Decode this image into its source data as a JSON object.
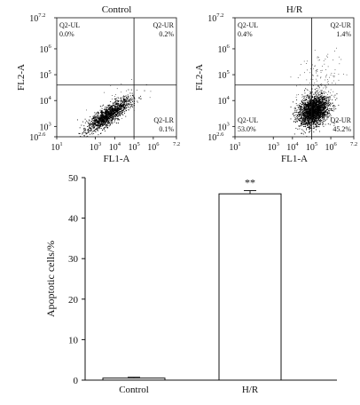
{
  "chart_data": [
    {
      "type": "scatter",
      "panel": "flow-control",
      "title": "Control",
      "xlabel": "FL1-A",
      "ylabel": "FL2-A",
      "xlim": [
        1,
        7.2
      ],
      "ylim": [
        2.6,
        7.2
      ],
      "scale": "log10",
      "x_ticks": [
        {
          "base": "10",
          "exp": "1",
          "value": 1
        },
        {
          "base": "10",
          "exp": "3",
          "value": 3
        },
        {
          "base": "10",
          "exp": "4",
          "value": 4
        },
        {
          "base": "10",
          "exp": "5",
          "value": 5
        },
        {
          "base": "10",
          "exp": "6",
          "value": 6
        },
        {
          "base": "",
          "exp": "7.2",
          "value": 7.2
        }
      ],
      "y_ticks": [
        {
          "base": "10",
          "exp": "2.6",
          "value": 2.6
        },
        {
          "base": "10",
          "exp": "3",
          "value": 3
        },
        {
          "base": "10",
          "exp": "4",
          "value": 4
        },
        {
          "base": "10",
          "exp": "5",
          "value": 5
        },
        {
          "base": "10",
          "exp": "6",
          "value": 6
        },
        {
          "base": "10",
          "exp": "7.2",
          "value": 7.2
        }
      ],
      "gate_x": 5.0,
      "gate_y": 4.6,
      "quadrants": {
        "UL": {
          "label": "Q2-UL",
          "value": "0.0%"
        },
        "UR": {
          "label": "Q2-UR",
          "value": "0.2%"
        },
        "LL": {
          "label": "",
          "value": ""
        },
        "LR": {
          "label": "Q2-LR",
          "value": "0.1%"
        }
      },
      "clusters": [
        {
          "n": 1500,
          "cx": 3.7,
          "cy": 3.45,
          "sx": 0.55,
          "sy": 0.32,
          "rho": 0.82,
          "density": "dense"
        },
        {
          "n": 40,
          "cx": 4.6,
          "cy": 4.1,
          "sx": 0.9,
          "sy": 0.5,
          "rho": 0.5,
          "density": "sparse"
        }
      ]
    },
    {
      "type": "scatter",
      "panel": "flow-hr",
      "title": "H/R",
      "xlabel": "FL1-A",
      "ylabel": "FL2-A",
      "xlim": [
        1,
        7.2
      ],
      "ylim": [
        2.6,
        7.2
      ],
      "scale": "log10",
      "x_ticks": [
        {
          "base": "10",
          "exp": "1",
          "value": 1
        },
        {
          "base": "10",
          "exp": "3",
          "value": 3
        },
        {
          "base": "10",
          "exp": "4",
          "value": 4
        },
        {
          "base": "10",
          "exp": "5",
          "value": 5
        },
        {
          "base": "10",
          "exp": "6",
          "value": 6
        },
        {
          "base": "",
          "exp": "7.2",
          "value": 7.2
        }
      ],
      "y_ticks": [
        {
          "base": "10",
          "exp": "2.6",
          "value": 2.6
        },
        {
          "base": "10",
          "exp": "3",
          "value": 3
        },
        {
          "base": "10",
          "exp": "4",
          "value": 4
        },
        {
          "base": "10",
          "exp": "5",
          "value": 5
        },
        {
          "base": "10",
          "exp": "6",
          "value": 6
        },
        {
          "base": "10",
          "exp": "7.2",
          "value": 7.2
        }
      ],
      "gate_x": 5.0,
      "gate_y": 4.6,
      "quadrants": {
        "UL": {
          "label": "Q2-UL",
          "value": "0.4%"
        },
        "UR": {
          "label": "Q2-UR",
          "value": "1.4%"
        },
        "LL": {
          "label": "Q2-UL",
          "value": "53.0%"
        },
        "LR": {
          "label": "Q2-UR",
          "value": "45.2%"
        }
      },
      "clusters": [
        {
          "n": 2300,
          "cx": 5.1,
          "cy": 3.6,
          "sx": 0.4,
          "sy": 0.3,
          "rho": 0.3,
          "density": "dense"
        },
        {
          "n": 180,
          "cx": 5.4,
          "cy": 4.6,
          "sx": 0.5,
          "sy": 0.55,
          "rho": 0.1,
          "density": "sparse"
        }
      ]
    },
    {
      "type": "bar",
      "panel": "bar-chart",
      "categories": [
        "Control",
        "H/R"
      ],
      "values": [
        0.5,
        46.0
      ],
      "errors": [
        0.2,
        0.8
      ],
      "annotations": [
        "",
        "**"
      ],
      "ylabel": "Apoptotic cells/%",
      "xlabel": "",
      "ylim": [
        0,
        50
      ],
      "y_ticks": [
        "0",
        "10",
        "20",
        "30",
        "40",
        "50"
      ]
    }
  ]
}
